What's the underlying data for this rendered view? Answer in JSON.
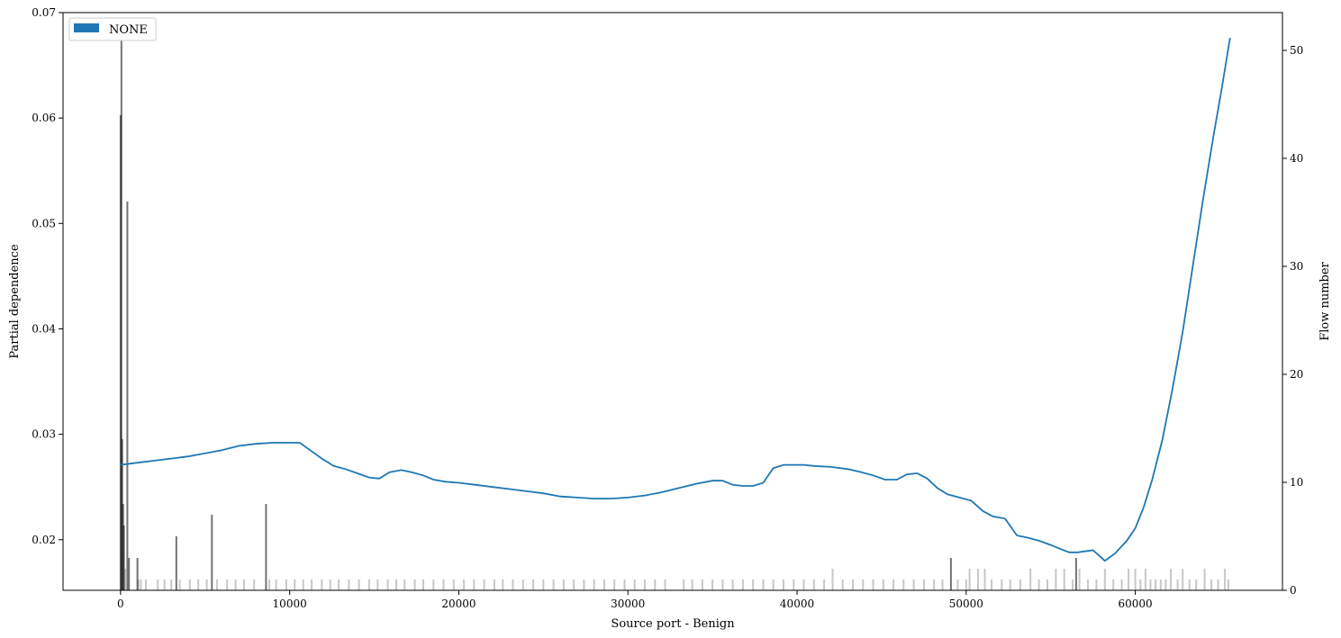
{
  "chart_data": {
    "type": "line",
    "title": "",
    "xlabel": "Source port - Benign",
    "ylabel": "Partial dependence",
    "y2label": "Flow number",
    "xlim": [
      -3400,
      68700
    ],
    "ylim": [
      0.0152,
      0.07
    ],
    "y2lim": [
      0,
      53.5
    ],
    "xticks": [
      0,
      10000,
      20000,
      30000,
      40000,
      50000,
      60000
    ],
    "yticks": [
      0.02,
      0.03,
      0.04,
      0.05,
      0.06,
      0.07
    ],
    "y2ticks": [
      0,
      10,
      20,
      30,
      40,
      50
    ],
    "legend": {
      "position": "top-left",
      "entries": [
        {
          "label": "NONE",
          "color": "#1f77b4"
        }
      ]
    },
    "grid": false,
    "series": [
      {
        "name": "NONE",
        "color": "#1f77b4",
        "x": [
          0,
          1000,
          2000,
          3000,
          4000,
          5000,
          6000,
          7000,
          8000,
          9000,
          10000,
          10600,
          11200,
          11900,
          12600,
          13300,
          14000,
          14700,
          15300,
          15900,
          16600,
          17200,
          17900,
          18500,
          19200,
          20000,
          21000,
          22000,
          23000,
          24000,
          25000,
          26000,
          27000,
          28000,
          29000,
          30000,
          31000,
          32000,
          33000,
          34000,
          35000,
          35600,
          36200,
          36800,
          37400,
          38000,
          38600,
          39200,
          39800,
          40400,
          41000,
          42000,
          43000,
          43800,
          44500,
          45200,
          45900,
          46500,
          47100,
          47700,
          48300,
          48900,
          49600,
          50300,
          51000,
          51600,
          52300,
          53000,
          53600,
          54300,
          55000,
          55600,
          56100,
          56600,
          57000,
          57500,
          58200,
          58800,
          59500,
          60000,
          60500,
          61000,
          61600,
          62200,
          62800,
          63400,
          64000,
          64600,
          65100,
          65600
        ],
        "y": [
          0.0271,
          0.0273,
          0.0275,
          0.0277,
          0.0279,
          0.0282,
          0.0285,
          0.0289,
          0.0291,
          0.0292,
          0.0292,
          0.0292,
          0.0285,
          0.0277,
          0.027,
          0.0267,
          0.0263,
          0.0259,
          0.0258,
          0.0264,
          0.0266,
          0.0264,
          0.0261,
          0.0257,
          0.0255,
          0.0254,
          0.0252,
          0.025,
          0.0248,
          0.0246,
          0.0244,
          0.0241,
          0.024,
          0.0239,
          0.0239,
          0.024,
          0.0242,
          0.0245,
          0.0249,
          0.0253,
          0.0256,
          0.0256,
          0.0252,
          0.0251,
          0.0251,
          0.0254,
          0.0268,
          0.0271,
          0.0271,
          0.0271,
          0.027,
          0.0269,
          0.0267,
          0.0264,
          0.0261,
          0.0257,
          0.0257,
          0.0262,
          0.0263,
          0.0258,
          0.0249,
          0.0243,
          0.024,
          0.0237,
          0.0227,
          0.0222,
          0.022,
          0.0204,
          0.0202,
          0.0199,
          0.0195,
          0.0191,
          0.0188,
          0.0188,
          0.0189,
          0.019,
          0.018,
          0.0187,
          0.0199,
          0.0211,
          0.0231,
          0.0257,
          0.0295,
          0.0343,
          0.0397,
          0.046,
          0.0522,
          0.0581,
          0.0627,
          0.0676
        ]
      }
    ],
    "flow_histogram": {
      "color": "#000000",
      "bars": [
        [
          0,
          44
        ],
        [
          50,
          51
        ],
        [
          100,
          14
        ],
        [
          150,
          8
        ],
        [
          200,
          6
        ],
        [
          280,
          2
        ],
        [
          400,
          36
        ],
        [
          500,
          3
        ],
        [
          1000,
          3
        ],
        [
          1050,
          1
        ],
        [
          1200,
          1
        ],
        [
          1500,
          1
        ],
        [
          2200,
          1
        ],
        [
          2600,
          1
        ],
        [
          3000,
          1
        ],
        [
          3300,
          5
        ],
        [
          3500,
          1
        ],
        [
          4100,
          1
        ],
        [
          4600,
          1
        ],
        [
          5100,
          1
        ],
        [
          5400,
          7
        ],
        [
          5700,
          1
        ],
        [
          6300,
          1
        ],
        [
          6800,
          1
        ],
        [
          7300,
          1
        ],
        [
          7900,
          1
        ],
        [
          8600,
          8
        ],
        [
          8800,
          1
        ],
        [
          9200,
          1
        ],
        [
          9800,
          1
        ],
        [
          10300,
          1
        ],
        [
          10800,
          1
        ],
        [
          11300,
          1
        ],
        [
          11900,
          1
        ],
        [
          12400,
          1
        ],
        [
          12900,
          1
        ],
        [
          13500,
          1
        ],
        [
          14100,
          1
        ],
        [
          14700,
          1
        ],
        [
          15200,
          1
        ],
        [
          15800,
          1
        ],
        [
          16300,
          1
        ],
        [
          16800,
          1
        ],
        [
          17400,
          1
        ],
        [
          17900,
          1
        ],
        [
          18500,
          1
        ],
        [
          19100,
          1
        ],
        [
          19700,
          1
        ],
        [
          20300,
          1
        ],
        [
          20900,
          1
        ],
        [
          21500,
          1
        ],
        [
          22100,
          1
        ],
        [
          22600,
          1
        ],
        [
          23200,
          1
        ],
        [
          23800,
          1
        ],
        [
          24400,
          1
        ],
        [
          25000,
          1
        ],
        [
          25600,
          1
        ],
        [
          26200,
          1
        ],
        [
          26800,
          1
        ],
        [
          27400,
          1
        ],
        [
          28000,
          1
        ],
        [
          28600,
          1
        ],
        [
          29200,
          1
        ],
        [
          29800,
          1
        ],
        [
          30400,
          1
        ],
        [
          31000,
          1
        ],
        [
          31600,
          1
        ],
        [
          32200,
          1
        ],
        [
          33300,
          1
        ],
        [
          33800,
          1
        ],
        [
          34400,
          1
        ],
        [
          35000,
          1
        ],
        [
          35600,
          1
        ],
        [
          36200,
          1
        ],
        [
          36800,
          1
        ],
        [
          37400,
          1
        ],
        [
          38000,
          1
        ],
        [
          38600,
          1
        ],
        [
          39200,
          1
        ],
        [
          39800,
          1
        ],
        [
          40400,
          1
        ],
        [
          41000,
          1
        ],
        [
          41600,
          1
        ],
        [
          42100,
          2
        ],
        [
          42700,
          1
        ],
        [
          43300,
          1
        ],
        [
          43900,
          1
        ],
        [
          44500,
          1
        ],
        [
          45100,
          1
        ],
        [
          45700,
          1
        ],
        [
          46300,
          1
        ],
        [
          46900,
          1
        ],
        [
          47500,
          1
        ],
        [
          48100,
          1
        ],
        [
          48600,
          1
        ],
        [
          49100,
          3
        ],
        [
          49500,
          1
        ],
        [
          50000,
          1
        ],
        [
          50200,
          2
        ],
        [
          50700,
          2
        ],
        [
          51100,
          2
        ],
        [
          51500,
          1
        ],
        [
          52100,
          1
        ],
        [
          52600,
          1
        ],
        [
          53200,
          1
        ],
        [
          53800,
          2
        ],
        [
          54300,
          1
        ],
        [
          54800,
          1
        ],
        [
          55300,
          2
        ],
        [
          55800,
          2
        ],
        [
          56300,
          1
        ],
        [
          56500,
          3
        ],
        [
          56700,
          2
        ],
        [
          57200,
          1
        ],
        [
          57700,
          1
        ],
        [
          58200,
          2
        ],
        [
          58700,
          1
        ],
        [
          59200,
          1
        ],
        [
          59600,
          2
        ],
        [
          60000,
          2
        ],
        [
          60300,
          1
        ],
        [
          60600,
          2
        ],
        [
          60900,
          1
        ],
        [
          61200,
          1
        ],
        [
          61500,
          1
        ],
        [
          61800,
          1
        ],
        [
          62100,
          2
        ],
        [
          62500,
          1
        ],
        [
          62800,
          2
        ],
        [
          63200,
          1
        ],
        [
          63600,
          1
        ],
        [
          64100,
          2
        ],
        [
          64500,
          1
        ],
        [
          64900,
          1
        ],
        [
          65300,
          2
        ],
        [
          65500,
          1
        ]
      ]
    }
  }
}
